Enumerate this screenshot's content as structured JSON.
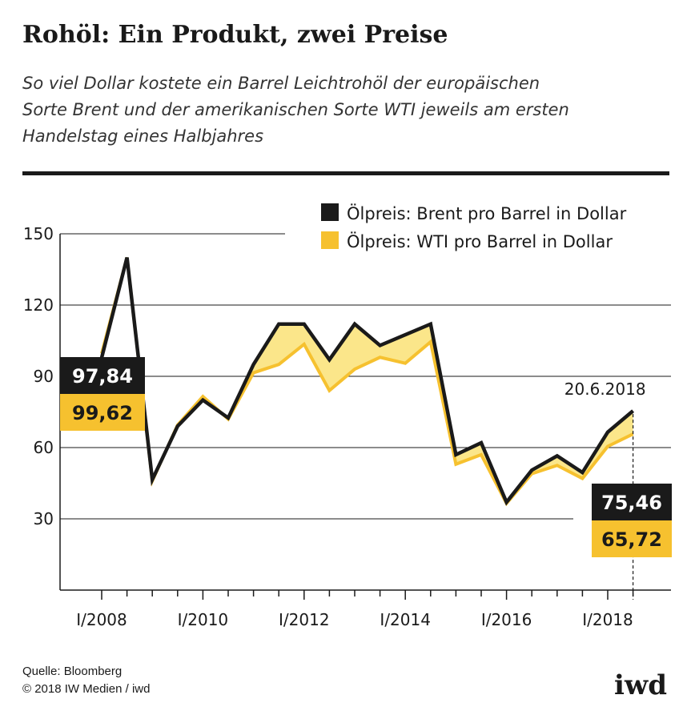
{
  "header": {
    "title": "Rohöl: Ein Produkt, zwei Preise",
    "subtitle_lines": [
      "So viel Dollar kostete ein Barrel Leichtrohöl der europäischen",
      "Sorte Brent und der amerikanischen Sorte WTI jeweils am ersten",
      "Handelstag eines Halbjahres"
    ]
  },
  "chart_data": {
    "type": "line",
    "title": "Rohöl: Ein Produkt, zwei Preise",
    "xlabel": "",
    "ylabel": "",
    "ylim": [
      0,
      150
    ],
    "yticks": [
      30,
      60,
      90,
      120,
      150
    ],
    "x_tick_labels": [
      "I/2008",
      "I/2010",
      "I/2012",
      "I/2014",
      "I/2016",
      "I/2018"
    ],
    "x": [
      "I/2008",
      "II/2008",
      "I/2009",
      "II/2009",
      "I/2010",
      "II/2010",
      "I/2011",
      "II/2011",
      "I/2012",
      "II/2012",
      "I/2013",
      "II/2013",
      "I/2014",
      "II/2014",
      "I/2015",
      "II/2015",
      "I/2016",
      "II/2016",
      "I/2017",
      "II/2017",
      "I/2018",
      "20.6.2018"
    ],
    "series": [
      {
        "name": "Ölpreis: Brent pro Barrel in Dollar",
        "color": "#1a1a1a",
        "values": [
          97.84,
          140.0,
          46.5,
          69.0,
          80.0,
          72.5,
          95.0,
          112.0,
          112.0,
          97.0,
          112.0,
          103.0,
          107.5,
          112.0,
          57.0,
          62.0,
          37.0,
          50.5,
          56.5,
          49.5,
          66.5,
          75.46
        ]
      },
      {
        "name": "Ölpreis: WTI pro Barrel in Dollar",
        "color": "#f6c12f",
        "values": [
          99.62,
          140.0,
          46.0,
          69.5,
          81.5,
          72.0,
          91.5,
          95.0,
          103.5,
          84.0,
          93.0,
          98.0,
          95.5,
          104.5,
          53.0,
          57.0,
          36.5,
          49.0,
          52.5,
          47.0,
          60.5,
          65.72
        ]
      }
    ],
    "start_labels": {
      "brent": "97,84",
      "wti": "99,62"
    },
    "end_labels": {
      "brent": "75,46",
      "wti": "65,72",
      "date": "20.6.2018"
    }
  },
  "colors": {
    "brent": "#1a1a1a",
    "wti": "#f6c12f",
    "fill": "#fbe68a"
  },
  "footer": {
    "source": "Quelle: Bloomberg",
    "copyright": "© 2018 IW Medien / iwd"
  },
  "logo": "iwd"
}
